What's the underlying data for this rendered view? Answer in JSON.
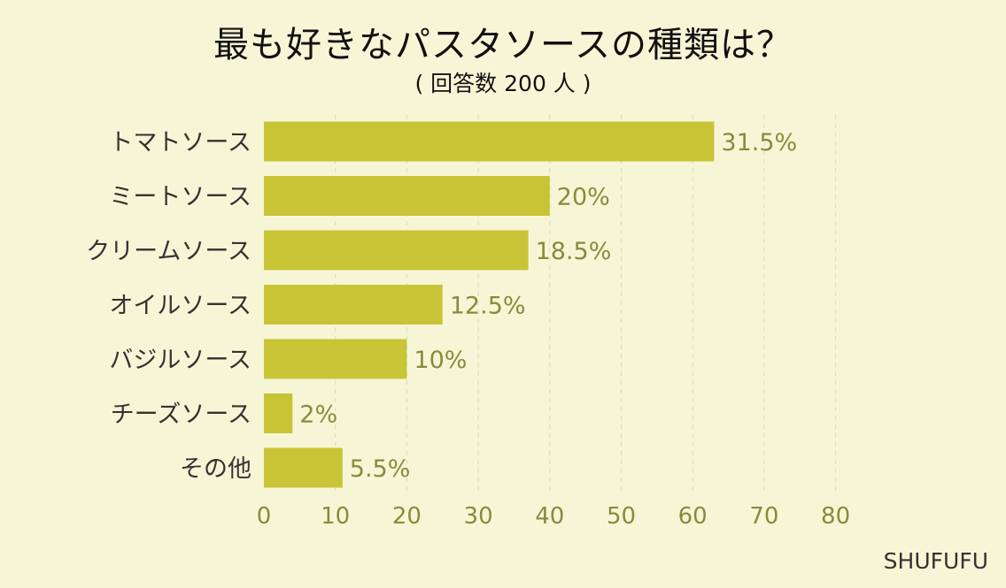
{
  "title": "最も好きなパスタソースの種類は？",
  "subtitle": "( 回答数 200 人 )",
  "watermark": "SHUFUFU",
  "colors": {
    "background": "#f6f6d6",
    "bar": "#c8c436",
    "tick_text": "#8a8a3c",
    "category_text": "#333333",
    "value_text": "#8a8a3c",
    "grid": "#d9d9c0"
  },
  "chart_data": {
    "type": "bar",
    "orientation": "horizontal",
    "categories": [
      "トマトソース",
      "ミートソース",
      "クリームソース",
      "オイルソース",
      "バジルソース",
      "チーズソース",
      "その他"
    ],
    "values": [
      63,
      40,
      37,
      25,
      20,
      4,
      11
    ],
    "value_labels": [
      "31.5%",
      "20%",
      "18.5%",
      "12.5%",
      "10%",
      "2%",
      "5.5%"
    ],
    "xlim": [
      0,
      80
    ],
    "xticks": [
      0,
      10,
      20,
      30,
      40,
      50,
      60,
      70,
      80
    ],
    "grid": "vertical-dashed",
    "legend": "none"
  }
}
